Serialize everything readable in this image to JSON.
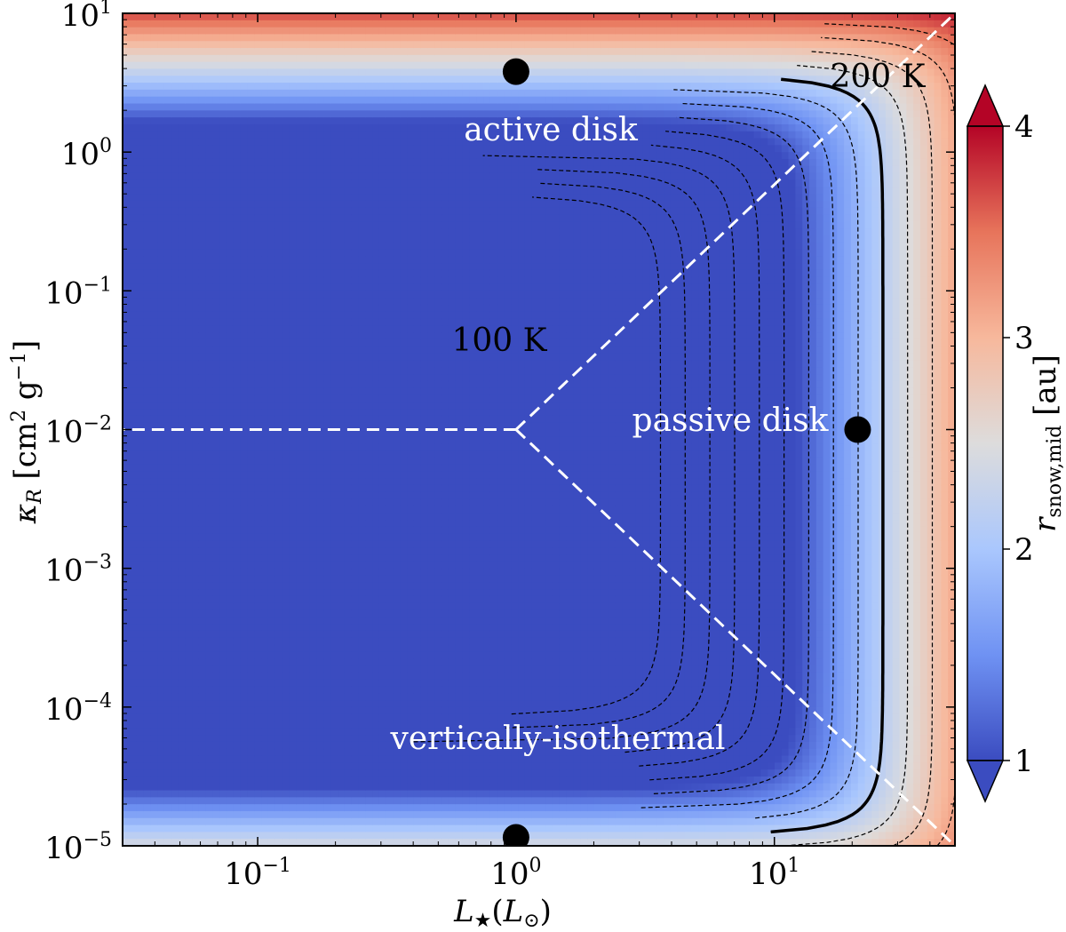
{
  "chart_data": {
    "type": "heatmap",
    "x_axis": {
      "label": "L★(L⊙)",
      "scale": "log",
      "range": [
        0.03,
        50
      ],
      "ticks": [
        0.1,
        1,
        10
      ],
      "tick_labels": [
        {
          "base": "10",
          "exp": "−1"
        },
        {
          "base": "10",
          "exp": "0"
        },
        {
          "base": "10",
          "exp": "1"
        }
      ]
    },
    "y_axis": {
      "label": "κR [cm² g⁻¹]",
      "scale": "log",
      "range": [
        1e-05,
        10
      ],
      "ticks": [
        1e-05,
        0.0001,
        0.001,
        0.01,
        0.1,
        1,
        10
      ],
      "tick_labels": [
        {
          "base": "10",
          "exp": "−5"
        },
        {
          "base": "10",
          "exp": "−4"
        },
        {
          "base": "10",
          "exp": "−3"
        },
        {
          "base": "10",
          "exp": "−2"
        },
        {
          "base": "10",
          "exp": "−1"
        },
        {
          "base": "10",
          "exp": "0"
        },
        {
          "base": "10",
          "exp": "1"
        }
      ]
    },
    "colorbar": {
      "label": "r_snow,mid [au]",
      "label_main": "r",
      "label_sub": "snow,mid",
      "label_unit": "[au]",
      "range": [
        1,
        4
      ],
      "ticks": [
        1,
        2,
        3,
        4
      ],
      "tick_labels": [
        "1",
        "2",
        "3",
        "4"
      ],
      "extend": "both",
      "colors": [
        "#3b4cc0",
        "#6f92f3",
        "#aac7fd",
        "#dddcdc",
        "#f7b89c",
        "#e7745b",
        "#b40426"
      ]
    },
    "contours": {
      "style": "dashed",
      "bold_contour_note": "solid"
    },
    "boundaries": {
      "vertex": {
        "x": 1,
        "y": 0.01
      },
      "horizontal_to": {
        "x": 0.03,
        "y": 0.01
      },
      "upper_to": {
        "x": 50,
        "y": 10
      },
      "lower_to": {
        "x": 50,
        "y": 1e-05
      }
    },
    "markers": [
      {
        "x": 1.0,
        "y": 3.8
      },
      {
        "x": 21,
        "y": 0.01
      },
      {
        "x": 1.0,
        "y": 1.15e-05
      }
    ],
    "annotations": {
      "active": "active disk",
      "passive": "passive disk",
      "vertical": "vertically-isothermal",
      "t100": "100 K",
      "t200": "200 K"
    }
  }
}
